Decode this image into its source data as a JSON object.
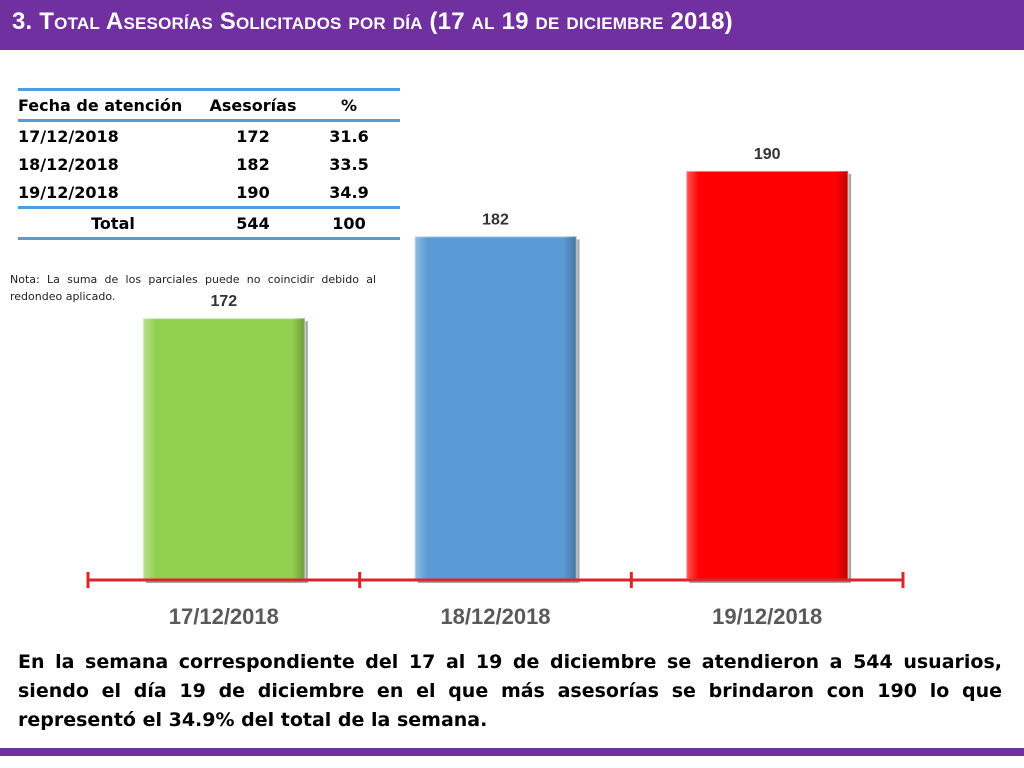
{
  "title": "3. Total Asesorías Solicitados por día (17 al 19 de diciembre 2018)",
  "colors": {
    "accent": "#7030a0",
    "table_rule": "#4f9ed8",
    "axis": "#d9262c",
    "bar_green": "#92d050",
    "bar_blue": "#5b9bd5",
    "bar_red": "#ff0000"
  },
  "table": {
    "headers": [
      "Fecha de atención",
      "Asesorías",
      "%"
    ],
    "rows": [
      [
        "17/12/2018",
        "172",
        "31.6"
      ],
      [
        "18/12/2018",
        "182",
        "33.5"
      ],
      [
        "19/12/2018",
        "190",
        "34.9"
      ]
    ],
    "total": [
      "Total",
      "544",
      "100"
    ]
  },
  "note": "Nota: La suma de los parciales puede no coincidir debido al redondeo aplicado.",
  "chart_data": {
    "type": "bar",
    "categories": [
      "17/12/2018",
      "18/12/2018",
      "19/12/2018"
    ],
    "values": [
      172,
      182,
      190
    ],
    "bar_colors": [
      "#92d050",
      "#5b9bd5",
      "#ff0000"
    ],
    "data_labels": [
      "172",
      "182",
      "190"
    ],
    "ylim": [
      140,
      195
    ],
    "grid": false,
    "title": "",
    "xlabel": "",
    "ylabel": ""
  },
  "conclusion": "En la semana correspondiente del 17 al 19 de diciembre se atendieron a 544 usuarios, siendo el día 19 de diciembre en el que más asesorías se brindaron con 190 lo que representó el 34.9% del total de la semana."
}
